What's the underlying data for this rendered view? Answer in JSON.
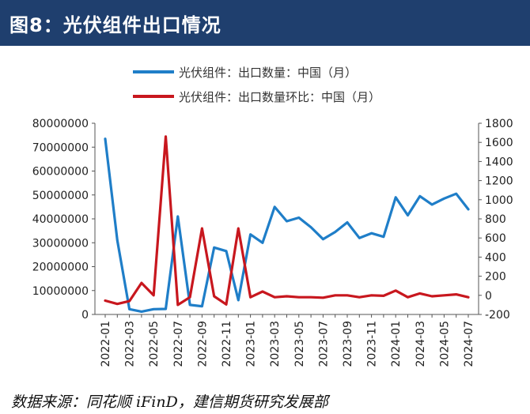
{
  "header": {
    "title": "图8：光伏组件出口情况"
  },
  "footer": {
    "source": "数据来源：同花顺 iFinD，建信期货研究发展部"
  },
  "chart_data": {
    "type": "line",
    "categories": [
      "2022-01",
      "2022-02",
      "2022-03",
      "2022-04",
      "2022-05",
      "2022-06",
      "2022-07",
      "2022-08",
      "2022-09",
      "2022-10",
      "2022-11",
      "2022-12",
      "2023-01",
      "2023-02",
      "2023-03",
      "2023-04",
      "2023-05",
      "2023-06",
      "2023-07",
      "2023-08",
      "2023-09",
      "2023-10",
      "2023-11",
      "2023-12",
      "2024-01",
      "2024-02",
      "2024-03",
      "2024-04",
      "2024-05",
      "2024-06",
      "2024-07"
    ],
    "x_tick_labels": [
      "2022-01",
      "2022-03",
      "2022-05",
      "2022-07",
      "2022-09",
      "2022-11",
      "2023-01",
      "2023-03",
      "2023-05",
      "2023-07",
      "2023-09",
      "2023-11",
      "2024-01",
      "2024-03",
      "2024-05",
      "2024-07"
    ],
    "left_axis": {
      "ylim": [
        0,
        80000000
      ],
      "ticks": [
        "0",
        "10000000",
        "20000000",
        "30000000",
        "40000000",
        "50000000",
        "60000000",
        "70000000",
        "80000000"
      ]
    },
    "right_axis": {
      "ylim": [
        -200,
        1800
      ],
      "ticks": [
        "-200",
        "0",
        "200",
        "400",
        "600",
        "800",
        "1000",
        "1200",
        "1400",
        "1600",
        "1800"
      ]
    },
    "series": [
      {
        "name": "光伏组件：出口数量：中国（月）",
        "axis": "left",
        "color": "#1f7ec8",
        "values": [
          73500000,
          31000000,
          2200000,
          1200000,
          2200000,
          2300000,
          41000000,
          4000000,
          3400000,
          28000000,
          26500000,
          6000000,
          33500000,
          30000000,
          45000000,
          39000000,
          40500000,
          36500000,
          31500000,
          34500000,
          38500000,
          32000000,
          34000000,
          32500000,
          49000000,
          41500000,
          49500000,
          46000000,
          48500000,
          50500000,
          44000000
        ]
      },
      {
        "name": "光伏组件：出口数量环比：中国（月）",
        "axis": "right",
        "color": "#c8171e",
        "values": [
          -55,
          -90,
          -60,
          130,
          0,
          1660,
          -100,
          -20,
          700,
          -10,
          -95,
          700,
          -20,
          40,
          -20,
          -10,
          -20,
          -20,
          -25,
          0,
          0,
          -20,
          0,
          -5,
          50,
          -20,
          20,
          -10,
          0,
          10,
          -20
        ]
      }
    ]
  }
}
